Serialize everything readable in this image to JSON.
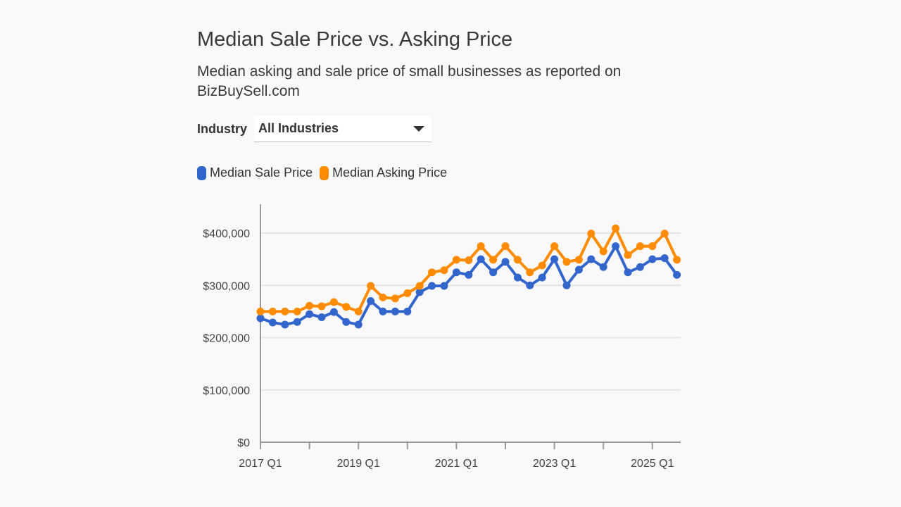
{
  "header": {
    "title": "Median Sale Price vs. Asking Price",
    "subtitle": "Median asking and sale price of small businesses as reported on BizBuySell.com"
  },
  "filter": {
    "label": "Industry",
    "selected": "All Industries",
    "icon": "caret-down-icon"
  },
  "chart_data": {
    "type": "line",
    "title": "Median Sale Price vs. Asking Price",
    "x": [
      "2017 Q1",
      "2017 Q2",
      "2017 Q3",
      "2017 Q4",
      "2018 Q1",
      "2018 Q2",
      "2018 Q3",
      "2018 Q4",
      "2019 Q1",
      "2019 Q2",
      "2019 Q3",
      "2019 Q4",
      "2020 Q1",
      "2020 Q2",
      "2020 Q3",
      "2020 Q4",
      "2021 Q1",
      "2021 Q2",
      "2021 Q3",
      "2021 Q4",
      "2022 Q1",
      "2022 Q2",
      "2022 Q3",
      "2022 Q4",
      "2023 Q1",
      "2023 Q2",
      "2023 Q3",
      "2023 Q4",
      "2024 Q1",
      "2024 Q2",
      "2024 Q3",
      "2024 Q4",
      "2025 Q1",
      "2025 Q2",
      "2025 Q3"
    ],
    "x_tick_labels": [
      "2017 Q1",
      "2019 Q1",
      "2021 Q1",
      "2023 Q1",
      "2025 Q1"
    ],
    "y_tick_labels": [
      "$0",
      "$100,000",
      "$200,000",
      "$300,000",
      "$400,000"
    ],
    "ylim": [
      0,
      400000
    ],
    "grid": true,
    "legend": "top-left",
    "series": [
      {
        "name": "Median Sale Price",
        "color": "#3366cc",
        "values": [
          237000,
          229000,
          225000,
          230000,
          245000,
          239000,
          249000,
          230000,
          225000,
          270000,
          250000,
          250000,
          250000,
          287000,
          299000,
          299000,
          325000,
          320000,
          350000,
          325000,
          345000,
          315000,
          300000,
          315000,
          350000,
          300000,
          330000,
          350000,
          335000,
          375000,
          325000,
          335000,
          350000,
          352000,
          320000
        ]
      },
      {
        "name": "Median Asking Price",
        "color": "#ff8c00",
        "values": [
          250000,
          250000,
          250000,
          250000,
          261000,
          260000,
          268000,
          259000,
          250000,
          299000,
          277000,
          275000,
          285000,
          299000,
          325000,
          329000,
          349000,
          348000,
          375000,
          349000,
          375000,
          349000,
          325000,
          338000,
          375000,
          345000,
          349000,
          399000,
          365000,
          409000,
          358000,
          375000,
          375000,
          399000,
          349000
        ]
      }
    ]
  }
}
